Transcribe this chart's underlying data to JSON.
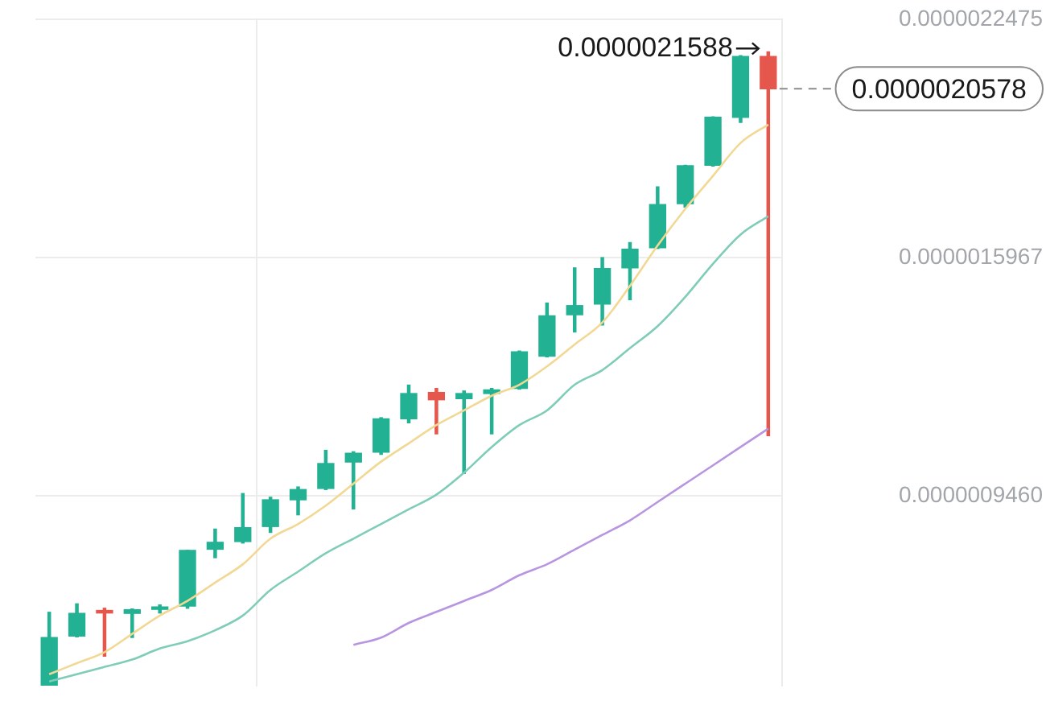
{
  "chart_data": {
    "type": "candlestick",
    "categories": [
      null,
      null,
      null,
      null,
      null,
      null,
      null,
      null,
      null,
      null,
      null,
      null,
      null,
      null,
      null,
      null,
      null,
      null,
      null,
      null,
      null,
      null,
      null,
      null,
      null,
      null,
      null
    ],
    "ohlc": [
      [
        4.3e-07,
        6.29e-07,
        4.3e-07,
        5.6e-07
      ],
      [
        5.64e-07,
        6.52e-07,
        5.62e-07,
        6.26e-07
      ],
      [
        6.34e-07,
        6.4e-07,
        5.09e-07,
        6.27e-07
      ],
      [
        6.26e-07,
        6.38e-07,
        5.6e-07,
        6.36e-07
      ],
      [
        6.37e-07,
        6.49e-07,
        6.27e-07,
        6.42e-07
      ],
      [
        6.46e-07,
        7.98e-07,
        6.4e-07,
        7.98e-07
      ],
      [
        8.01e-07,
        8.56e-07,
        7.78e-07,
        8.2e-07
      ],
      [
        8.22e-07,
        9.53e-07,
        8.18e-07,
        8.6e-07
      ],
      [
        8.63e-07,
        9.43e-07,
        8.47e-07,
        9.36e-07
      ],
      [
        9.36e-07,
        9.71e-07,
        8.95e-07,
        9.64e-07
      ],
      [
        9.67e-07,
        1.071e-06,
        9.64e-07,
        1.035e-06
      ],
      [
        1.039e-06,
        1.067e-06,
        9.11e-07,
        1.063e-06
      ],
      [
        1.066e-06,
        1.16e-06,
        1.06e-06,
        1.157e-06
      ],
      [
        1.157e-06,
        1.249e-06,
        1.146e-06,
        1.226e-06
      ],
      [
        1.229e-06,
        1.24e-06,
        1.116e-06,
        1.209e-06
      ],
      [
        1.212e-06,
        1.233e-06,
        1.008e-06,
        1.226e-06
      ],
      [
        1.226e-06,
        1.24e-06,
        1.116e-06,
        1.236e-06
      ],
      [
        1.24e-06,
        1.342e-06,
        1.238e-06,
        1.34e-06
      ],
      [
        1.328e-06,
        1.473e-06,
        1.326e-06,
        1.438e-06
      ],
      [
        1.441e-06,
        1.569e-06,
        1.394e-06,
        1.466e-06
      ],
      [
        1.47e-06,
        1.597e-06,
        1.413e-06,
        1.567e-06
      ],
      [
        1.569e-06,
        1.638e-06,
        1.482e-06,
        1.62e-06
      ],
      [
        1.624e-06,
        1.79e-06,
        1.622e-06,
        1.742e-06
      ],
      [
        1.744e-06,
        1.849e-06,
        1.735e-06,
        1.848e-06
      ],
      [
        1.849e-06,
        1.981e-06,
        1.847e-06,
        1.98e-06
      ],
      [
        1.98e-06,
        2.148e-06,
        1.966e-06,
        2.146e-06
      ],
      [
        2.146e-06,
        2.1588e-06,
        1.111e-06,
        2.0578e-06
      ]
    ],
    "colors": [
      "#22b193",
      "#22b193",
      "#e5564c",
      "#22b193",
      "#22b193",
      "#22b193",
      "#22b193",
      "#22b193",
      "#22b193",
      "#22b193",
      "#22b193",
      "#22b193",
      "#22b193",
      "#22b193",
      "#e5564c",
      "#22b193",
      "#22b193",
      "#22b193",
      "#22b193",
      "#22b193",
      "#22b193",
      "#22b193",
      "#22b193",
      "#22b193",
      "#22b193",
      "#22b193",
      "#e5564c"
    ],
    "series": [
      {
        "type": "line",
        "color": "#f1d894",
        "values": [
          4.6e-07,
          4.9e-07,
          5.2e-07,
          5.7e-07,
          6.2e-07,
          6.6e-07,
          7.1e-07,
          7.6e-07,
          8.3e-07,
          8.7e-07,
          9.2e-07,
          9.8e-07,
          1.04e-06,
          1.09e-06,
          1.14e-06,
          1.18e-06,
          1.22e-06,
          1.25e-06,
          1.3e-06,
          1.36e-06,
          1.42e-06,
          1.52e-06,
          1.63e-06,
          1.73e-06,
          1.82e-06,
          1.91e-06,
          1.96e-06
        ]
      },
      {
        "type": "line",
        "color": "#7fcdb8",
        "values": [
          4.4e-07,
          4.6e-07,
          4.8e-07,
          5e-07,
          5.3e-07,
          5.5e-07,
          5.8e-07,
          6.2e-07,
          6.9e-07,
          7.4e-07,
          7.9e-07,
          8.3e-07,
          8.7e-07,
          9.1e-07,
          9.5e-07,
          1.01e-06,
          1.08e-06,
          1.14e-06,
          1.18e-06,
          1.25e-06,
          1.29e-06,
          1.35e-06,
          1.41e-06,
          1.49e-06,
          1.58e-06,
          1.66e-06,
          1.71e-06
        ]
      },
      {
        "type": "line",
        "color": "#b895e0",
        "values": [
          null,
          null,
          null,
          null,
          null,
          null,
          null,
          null,
          null,
          null,
          null,
          5.4e-07,
          5.6e-07,
          6e-07,
          6.3e-07,
          6.6e-07,
          6.9e-07,
          7.3e-07,
          7.6e-07,
          8e-07,
          8.4e-07,
          8.8e-07,
          9.3e-07,
          9.8e-07,
          1.03e-06,
          1.08e-06,
          1.13e-06
        ]
      }
    ],
    "ylim": [
      4.26e-07,
      2.25e-06
    ],
    "yticks": [
      {
        "value": 2.2475e-06,
        "label": "0.0000022475"
      },
      {
        "value": 1.5967e-06,
        "label": "0.0000015967"
      },
      {
        "value": 9.46e-07,
        "label": "0.0000009460"
      }
    ],
    "ref_lines": [
      {
        "axis": "y",
        "value": 2.0578e-06,
        "label": "0.0000020578",
        "color": "#8c8c8c",
        "line_style": "dashed"
      }
    ],
    "annotations": [
      "0.0000021588"
    ],
    "grid": true,
    "tick_labels": "y"
  }
}
